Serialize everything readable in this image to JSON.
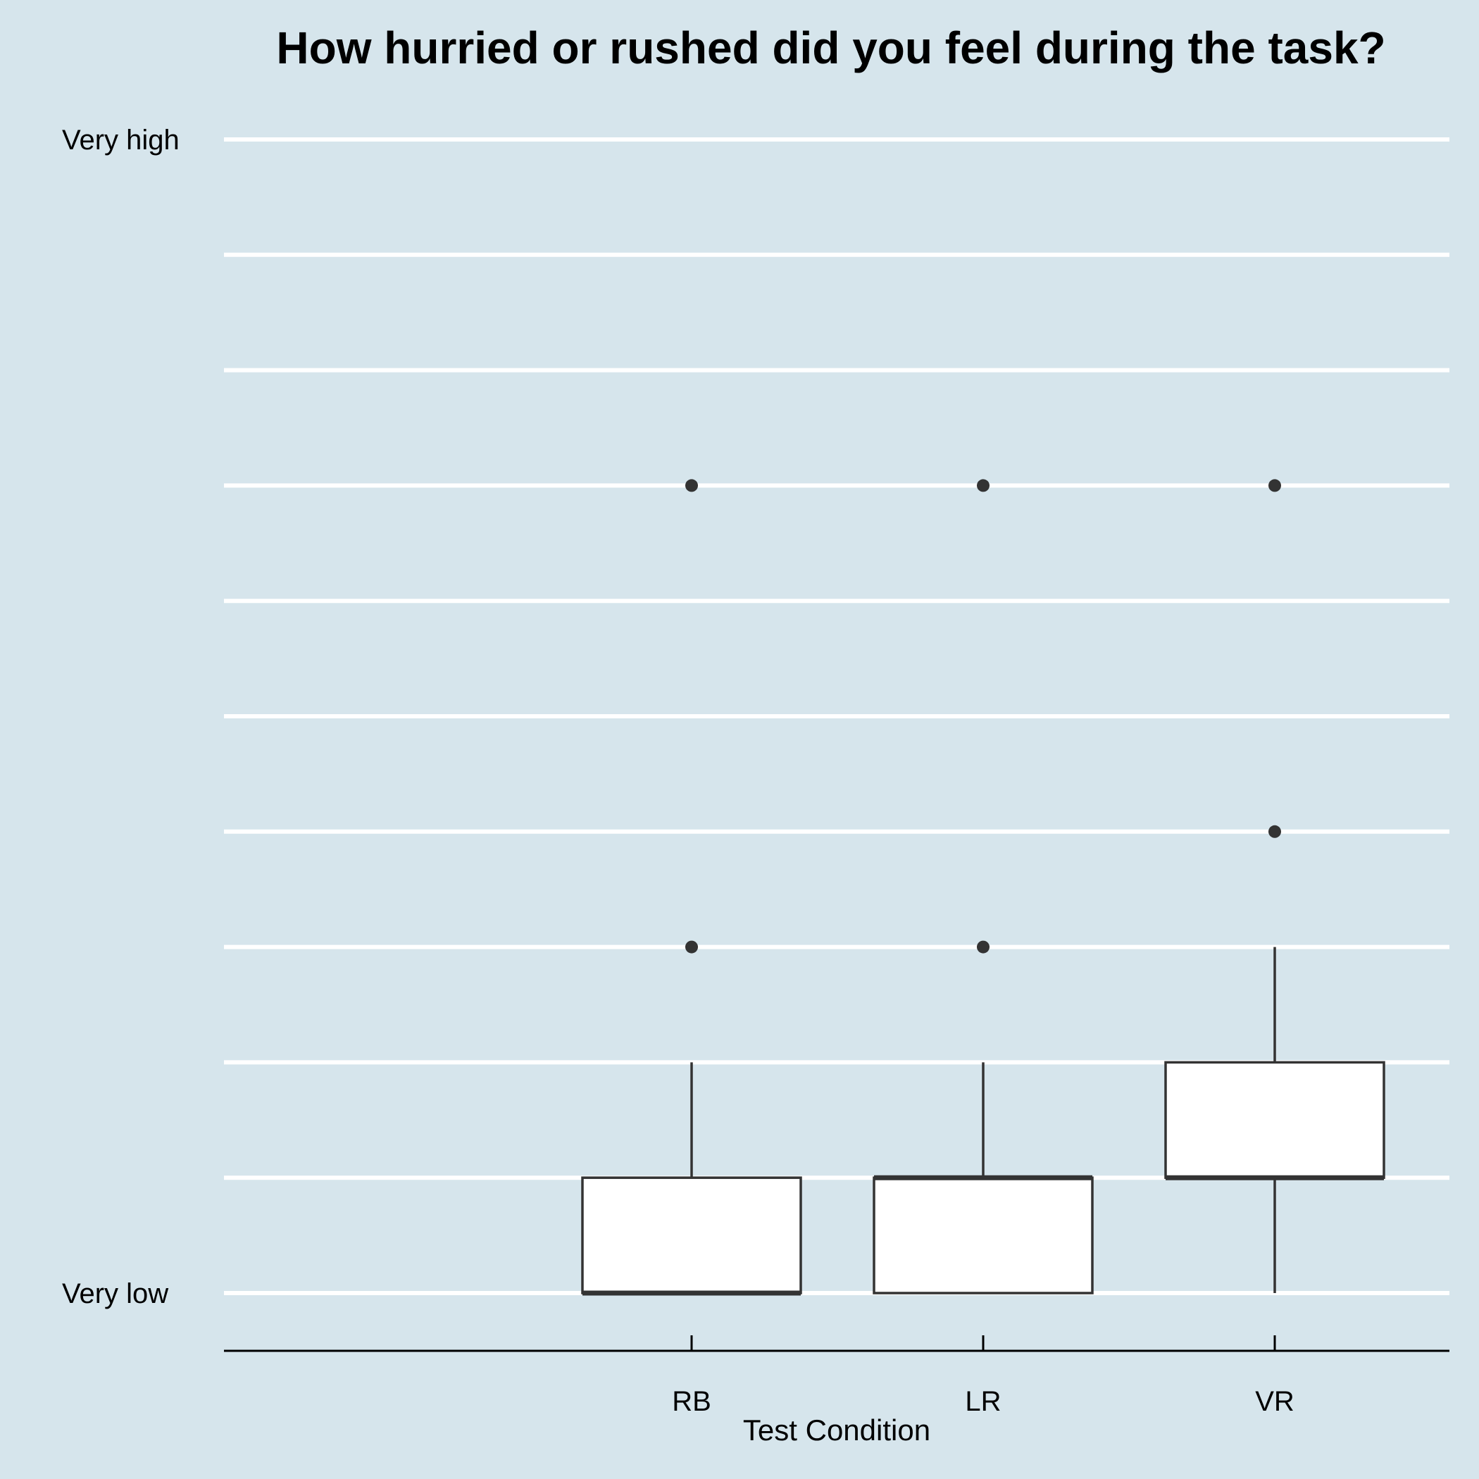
{
  "chart_data": {
    "type": "boxplot",
    "title": "How hurried or rushed did you feel during the task?",
    "xlabel": "Test Condition",
    "ylabel": "",
    "y_scale_min": 1,
    "y_scale_max": 11,
    "y_tick_labels": [
      {
        "value": 1,
        "label": "Very low"
      },
      {
        "value": 11,
        "label": "Very high"
      }
    ],
    "grid": true,
    "colors": {
      "background": "#d6e5ec",
      "grid": "#ffffff",
      "box_fill": "#ffffff",
      "box_stroke": "#333333",
      "outlier": "#333333"
    },
    "categories": [
      "RB",
      "LR",
      "VR"
    ],
    "boxes": [
      {
        "category": "RB",
        "whisker_low": 1,
        "q1": 1,
        "median": 1,
        "q3": 2,
        "whisker_high": 3,
        "outliers": [
          4,
          8
        ]
      },
      {
        "category": "LR",
        "whisker_low": 1,
        "q1": 1,
        "median": 2,
        "q3": 2,
        "whisker_high": 3,
        "outliers": [
          4,
          8
        ]
      },
      {
        "category": "VR",
        "whisker_low": 1,
        "q1": 2,
        "median": 2,
        "q3": 3,
        "whisker_high": 4,
        "outliers": [
          5,
          8
        ]
      }
    ]
  }
}
